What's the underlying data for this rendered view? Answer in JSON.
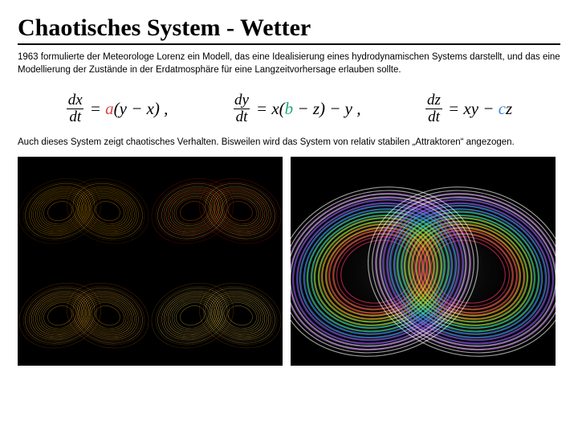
{
  "title": "Chaotisches System - Wetter",
  "intro": "1963 formulierte der Meteorologe Lorenz ein Modell, das eine Idealisierung eines hydrodynamischen Systems darstellt, und das eine Modellierung der Zustände in der Erdatmosphäre für eine Langzeitvorhersage erlauben sollte.",
  "equations": {
    "font_family": "Georgia",
    "font_size": 21,
    "colors": {
      "a": "#d44",
      "b": "#2a7",
      "c": "#48d"
    },
    "eq1": {
      "dnum": "dx",
      "dden": "dt",
      "rhs_pre": "= ",
      "coef": "a",
      "rhs_post": "(y − x) ,"
    },
    "eq2": {
      "dnum": "dy",
      "dden": "dt",
      "rhs_pre": "= x(",
      "coef": "b",
      "rhs_post": " − z) − y ,"
    },
    "eq3": {
      "dnum": "dz",
      "dden": "dt",
      "rhs_pre": "= xy − ",
      "coef": "c",
      "rhs_post": "z"
    }
  },
  "outro": "Auch dieses System zeigt chaotisches Verhalten. Bisweilen wird das System von relativ stabilen „Attraktoren“ angezogen.",
  "figures": {
    "background": "#000000",
    "left_grid": {
      "type": "lorenz-attractor-grid",
      "cols": 2,
      "rows": 2,
      "cells": [
        {
          "strokes": [
            "#ff9900",
            "#ffcc00",
            "#884400"
          ],
          "stroke_width": 0.5,
          "shape": "butterfly"
        },
        {
          "strokes": [
            "#ff6600",
            "#ffee55",
            "#dd2200"
          ],
          "stroke_width": 0.5,
          "shape": "butterfly"
        },
        {
          "strokes": [
            "#ffaa00",
            "#ffdd55",
            "#cc6600"
          ],
          "stroke_width": 0.5,
          "shape": "butterfly"
        },
        {
          "strokes": [
            "#ffcc33",
            "#ffee88",
            "#bb7700"
          ],
          "stroke_width": 0.5,
          "shape": "butterfly"
        }
      ]
    },
    "right": {
      "type": "lorenz-rainbow",
      "strokes": [
        "#ff3366",
        "#ff9933",
        "#ffee33",
        "#66ff66",
        "#33ddff",
        "#6666ff",
        "#cc66ff",
        "#ffffff"
      ],
      "stroke_width": 1.2,
      "glow": true
    }
  }
}
